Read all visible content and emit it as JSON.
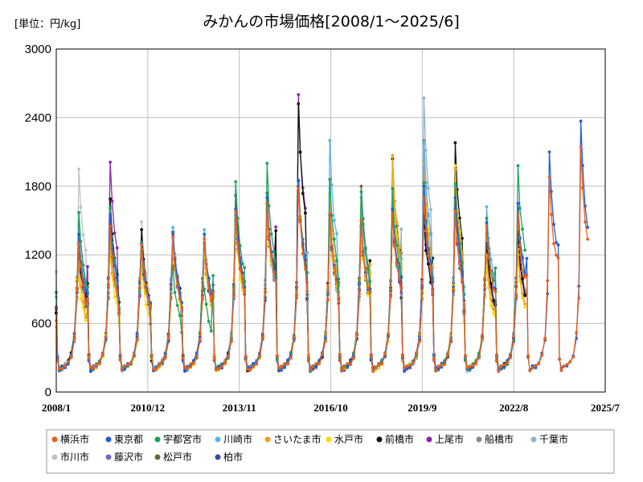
{
  "chart_data": {
    "type": "line",
    "title": "みかんの市場価格[2008/1～2025/6]",
    "unit_label": "[単位：円/kg]",
    "xlabel": "",
    "ylabel": "",
    "ylim": [
      0,
      3000
    ],
    "yticks": [
      0,
      600,
      1200,
      1800,
      2400,
      3000
    ],
    "xlim": [
      2008.0,
      2025.5
    ],
    "xticks": [
      {
        "label": "2008/1",
        "value": 2008.0
      },
      {
        "label": "2010/12",
        "value": 2010.917
      },
      {
        "label": "2013/11",
        "value": 2013.833
      },
      {
        "label": "2016/10",
        "value": 2016.75
      },
      {
        "label": "2019/9",
        "value": 2019.667
      },
      {
        "label": "2022/8",
        "value": 2022.583
      },
      {
        "label": "2025/7",
        "value": 2025.5
      }
    ],
    "grid": true,
    "legend_position": "bottom",
    "series": [
      {
        "name": "横浜市",
        "color": "#e8601c",
        "peaks": [
          1300,
          1450,
          1290,
          1360,
          1340,
          1580,
          1650,
          1780,
          1560,
          1500,
          1560,
          1700,
          1580,
          1450,
          1560,
          1880,
          2140
        ]
      },
      {
        "name": "東京都",
        "color": "#1f5fd6",
        "peaks": [
          1380,
          1550,
          1300,
          1380,
          1380,
          1600,
          1700,
          1850,
          1550,
          1500,
          1600,
          1800,
          1700,
          1480,
          1650,
          2100,
          2370
        ]
      },
      {
        "name": "宇都宮市",
        "color": "#1aa35a",
        "peaks": [
          1570,
          1620,
          1310,
          1100,
          900,
          1840,
          2000,
          1850,
          1860,
          1750,
          1780,
          1830,
          1820,
          1520,
          1980,
          null,
          null
        ]
      },
      {
        "name": "川崎市",
        "color": "#5ab4e8",
        "peaks": [
          1470,
          1580,
          1300,
          1440,
          1420,
          1590,
          1640,
          1850,
          2200,
          1700,
          1620,
          2170,
          1800,
          1620,
          1650,
          null,
          null
        ]
      },
      {
        "name": "さいたま市",
        "color": "#f0a020",
        "peaks": [
          1100,
          1300,
          1250,
          1350,
          1300,
          1500,
          1640,
          1820,
          1730,
          1550,
          2070,
          2020,
          1950,
          1200,
          1250,
          null,
          null
        ]
      },
      {
        "name": "水戸市",
        "color": "#f5e000",
        "peaks": [
          1000,
          1200,
          1100,
          1300,
          1250,
          1450,
          1600,
          1820,
          1500,
          1400,
          1900,
          2000,
          1980,
          1100,
          1200,
          null,
          null
        ]
      },
      {
        "name": "前橋市",
        "color": "#111111",
        "peaks": [
          1300,
          1690,
          1420,
          1400,
          1250,
          1500,
          1650,
          2520,
          1500,
          1450,
          2040,
          1550,
          2180,
          1300,
          1400,
          null,
          null
        ]
      },
      {
        "name": "上尾市",
        "color": "#8e24aa",
        "peaks": [
          1300,
          2010,
          1300,
          1380,
          1300,
          1720,
          1740,
          2600,
          1500,
          1450,
          1600,
          1600,
          1600,
          1300,
          1400,
          null,
          null
        ]
      },
      {
        "name": "船橋市",
        "color": "#7f8c9a",
        "peaks": [
          1300,
          1450,
          1300,
          1350,
          1300,
          1550,
          1600,
          1850,
          1500,
          1450,
          1600,
          2200,
          1600,
          1300,
          1400,
          null,
          null
        ]
      },
      {
        "name": "千葉市",
        "color": "#8fb4cc",
        "peaks": [
          1300,
          1450,
          1300,
          1350,
          1300,
          1550,
          1600,
          1850,
          1500,
          1450,
          1600,
          2570,
          1600,
          1300,
          1400,
          null,
          null
        ]
      },
      {
        "name": "市川市",
        "color": "#c0c0c8",
        "peaks": [
          1950,
          1450,
          1490,
          1350,
          1300,
          1550,
          1600,
          1850,
          1500,
          1450,
          1600,
          1700,
          1600,
          1300,
          1400,
          null,
          null
        ]
      },
      {
        "name": "藤沢市",
        "color": "#7b68c8",
        "peaks": [
          1250,
          1400,
          1300,
          1350,
          1300,
          1550,
          1600,
          1850,
          1500,
          1450,
          1600,
          1700,
          1600,
          1300,
          1400,
          null,
          null
        ]
      },
      {
        "name": "松戸市",
        "color": "#6b6b3a",
        "peaks": [
          1250,
          1400,
          1300,
          1350,
          1300,
          1550,
          1600,
          1850,
          1500,
          1800,
          1600,
          1700,
          1600,
          1300,
          1400,
          null,
          null
        ]
      },
      {
        "name": "柏市",
        "color": "#2f4fa8",
        "peaks": [
          1300,
          1450,
          1300,
          1350,
          1300,
          1550,
          1600,
          1850,
          1500,
          1450,
          1600,
          1700,
          1600,
          1300,
          1400,
          null,
          null
        ]
      }
    ]
  }
}
